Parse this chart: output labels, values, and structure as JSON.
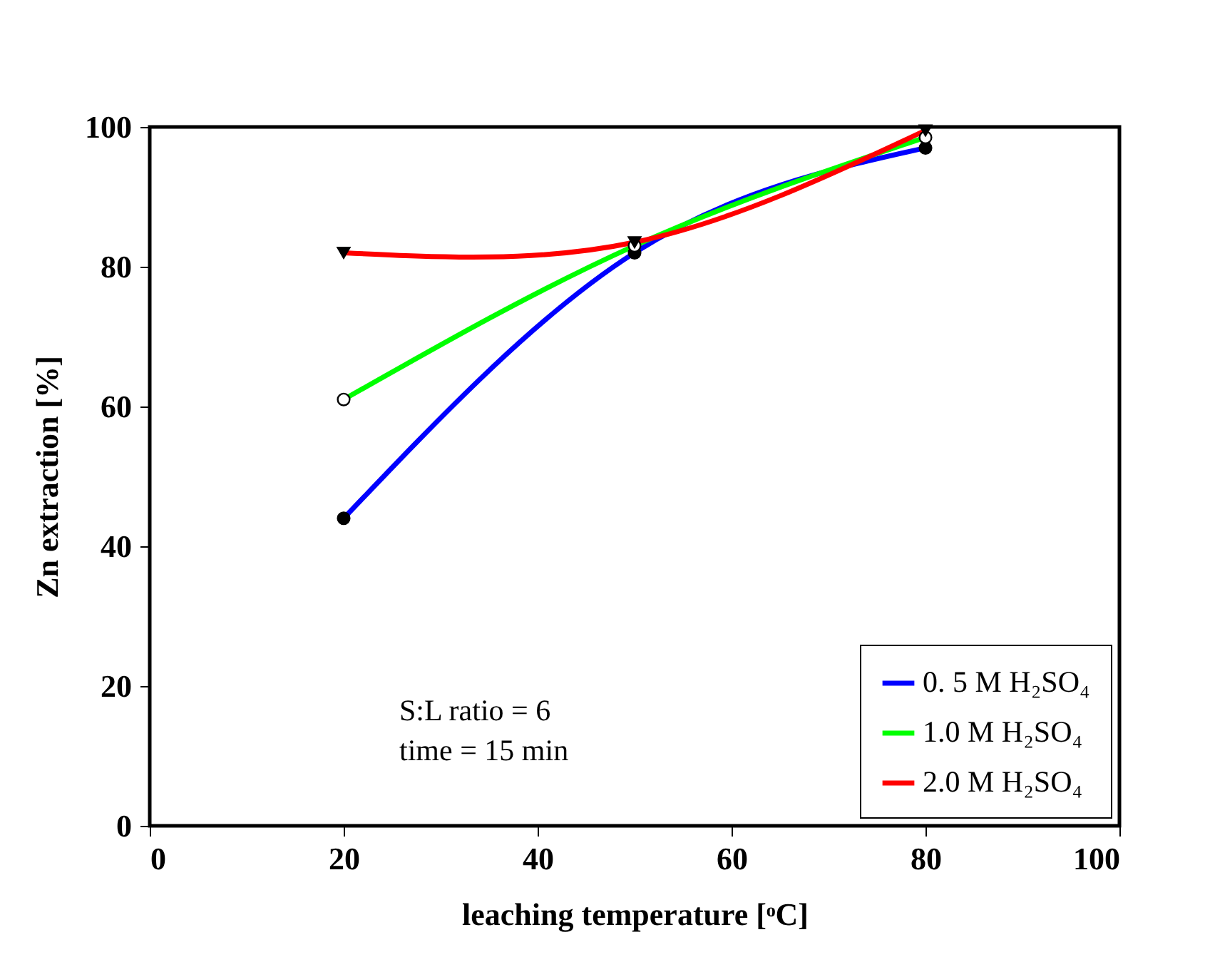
{
  "chart_data": {
    "type": "scatter",
    "xlabel": "leaching temperature [ᵒC]",
    "ylabel": "Zn extraction [%]",
    "xlim": [
      0,
      100
    ],
    "ylim": [
      0,
      100
    ],
    "xticks": [
      0,
      20,
      40,
      60,
      80,
      100
    ],
    "yticks": [
      0,
      20,
      40,
      60,
      80,
      100
    ],
    "grid": false,
    "legend": "bottom right",
    "series": [
      {
        "marker": "circle",
        "color": "#000000",
        "x": [
          20,
          50,
          80
        ],
        "values": [
          44,
          82,
          97
        ]
      },
      {
        "marker": "circle",
        "color": "#ffffff",
        "x": [
          20,
          50,
          80
        ],
        "values": [
          61,
          83,
          98.5
        ]
      },
      {
        "marker": "triangle",
        "color": "#000000",
        "x": [
          20,
          50,
          80
        ],
        "values": [
          82,
          83.5,
          99.5
        ]
      },
      {
        "type": "line",
        "name": "0. 5 M H₂SO₄",
        "color": "#0000ff",
        "x": [
          20,
          50,
          80
        ],
        "values": [
          44,
          82,
          97
        ]
      },
      {
        "type": "line",
        "name": "1.0 M H₂SO₄",
        "color": "#00ff00",
        "x": [
          20,
          50,
          80
        ],
        "values": [
          61,
          83,
          98.5
        ]
      },
      {
        "type": "line",
        "name": "2.0 M H₂SO₄",
        "color": "#ff0000",
        "x": [
          20,
          50,
          80
        ],
        "values": [
          82,
          83.5,
          99.5
        ]
      }
    ],
    "annotations": [
      "S:L ratio = 6",
      "time = 15 min"
    ]
  }
}
